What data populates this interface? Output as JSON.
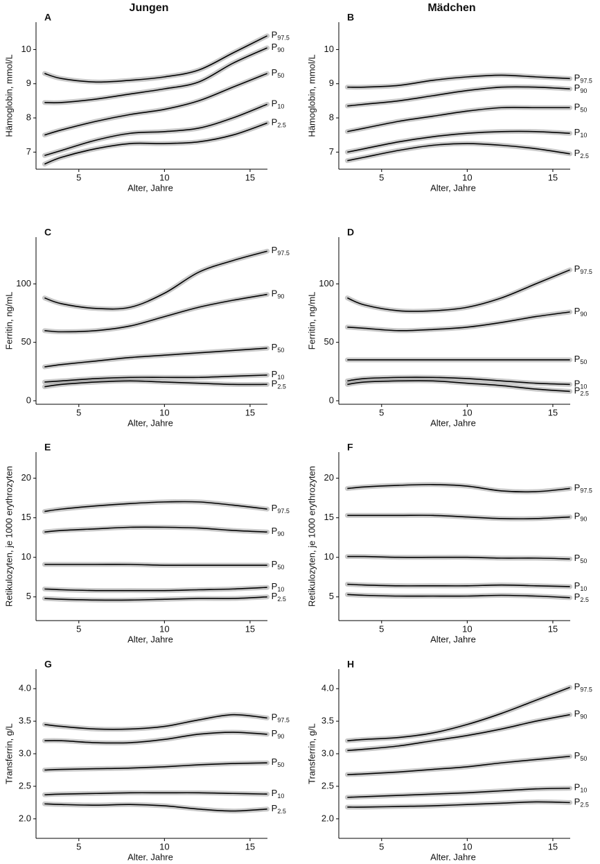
{
  "chart_data": [
    {
      "type": "line",
      "label": "A",
      "title": "Jungen",
      "xlabel": "Alter, Jahre",
      "ylabel": "Hämoglobin, mmol/L",
      "x": [
        3,
        4,
        6,
        8,
        10,
        12,
        14,
        16
      ],
      "xlim": [
        2.5,
        16.5
      ],
      "xticks": [
        5,
        10,
        15
      ],
      "ylim": [
        6.5,
        10.8
      ],
      "yticks": [
        7,
        8,
        9,
        10
      ],
      "series": [
        {
          "name": "P97.5",
          "color": "#000000",
          "values": [
            9.3,
            9.15,
            9.05,
            9.1,
            9.2,
            9.4,
            9.9,
            10.4
          ]
        },
        {
          "name": "P90",
          "color": "#000000",
          "values": [
            8.45,
            8.45,
            8.55,
            8.7,
            8.85,
            9.05,
            9.6,
            10.05
          ]
        },
        {
          "name": "P50",
          "color": "#000000",
          "values": [
            7.5,
            7.65,
            7.9,
            8.1,
            8.25,
            8.5,
            8.9,
            9.3
          ]
        },
        {
          "name": "P10",
          "color": "#000000",
          "values": [
            6.9,
            7.05,
            7.35,
            7.55,
            7.6,
            7.7,
            8.0,
            8.4
          ]
        },
        {
          "name": "P2.5",
          "color": "#000000",
          "values": [
            6.65,
            6.85,
            7.1,
            7.25,
            7.25,
            7.3,
            7.5,
            7.85
          ]
        }
      ]
    },
    {
      "type": "line",
      "label": "B",
      "title": "Mädchen",
      "xlabel": "Alter, Jahre",
      "ylabel": "Hämoglobin, mmol/L",
      "x": [
        3,
        4,
        6,
        8,
        10,
        12,
        14,
        16
      ],
      "xlim": [
        2.5,
        16.5
      ],
      "xticks": [
        5,
        10,
        15
      ],
      "ylim": [
        6.5,
        10.8
      ],
      "yticks": [
        7,
        8,
        9,
        10
      ],
      "series": [
        {
          "name": "P97.5",
          "color": "#000000",
          "values": [
            8.9,
            8.9,
            8.95,
            9.1,
            9.2,
            9.25,
            9.2,
            9.15
          ]
        },
        {
          "name": "P90",
          "color": "#000000",
          "values": [
            8.35,
            8.4,
            8.5,
            8.65,
            8.8,
            8.9,
            8.9,
            8.85
          ]
        },
        {
          "name": "P50",
          "color": "#000000",
          "values": [
            7.6,
            7.7,
            7.9,
            8.05,
            8.2,
            8.3,
            8.3,
            8.3
          ]
        },
        {
          "name": "P10",
          "color": "#000000",
          "values": [
            7.0,
            7.1,
            7.3,
            7.45,
            7.55,
            7.6,
            7.6,
            7.55
          ]
        },
        {
          "name": "P2.5",
          "color": "#000000",
          "values": [
            6.75,
            6.85,
            7.05,
            7.2,
            7.25,
            7.2,
            7.1,
            6.95
          ]
        }
      ]
    },
    {
      "type": "line",
      "label": "C",
      "xlabel": "Alter, Jahre",
      "ylabel": "Ferritin, ng/mL",
      "x": [
        3,
        4,
        6,
        8,
        10,
        12,
        14,
        16
      ],
      "xlim": [
        2.5,
        16.5
      ],
      "xticks": [
        5,
        10,
        15
      ],
      "ylim": [
        -3,
        140
      ],
      "yticks": [
        0,
        50,
        100
      ],
      "series": [
        {
          "name": "P97.5",
          "color": "#000000",
          "values": [
            88,
            83,
            79,
            80,
            92,
            110,
            120,
            128
          ]
        },
        {
          "name": "P90",
          "color": "#000000",
          "values": [
            60,
            59,
            60,
            64,
            72,
            80,
            86,
            91
          ]
        },
        {
          "name": "P50",
          "color": "#000000",
          "values": [
            29,
            31,
            34,
            37,
            39,
            41,
            43,
            45
          ]
        },
        {
          "name": "P10",
          "color": "#000000",
          "values": [
            16,
            17,
            19,
            20,
            20,
            20,
            21,
            22
          ]
        },
        {
          "name": "P2.5",
          "color": "#000000",
          "values": [
            12,
            14,
            16,
            17,
            16,
            15,
            14,
            14
          ]
        }
      ]
    },
    {
      "type": "line",
      "label": "D",
      "xlabel": "Alter, Jahre",
      "ylabel": "Ferritin, ng/mL",
      "x": [
        3,
        4,
        6,
        8,
        10,
        12,
        14,
        16
      ],
      "xlim": [
        2.5,
        16.5
      ],
      "xticks": [
        5,
        10,
        15
      ],
      "ylim": [
        -3,
        140
      ],
      "yticks": [
        0,
        50,
        100
      ],
      "series": [
        {
          "name": "P97.5",
          "color": "#000000",
          "values": [
            88,
            82,
            77,
            77,
            80,
            88,
            100,
            112
          ]
        },
        {
          "name": "P90",
          "color": "#000000",
          "values": [
            63,
            62,
            60,
            61,
            63,
            67,
            72,
            76
          ]
        },
        {
          "name": "P50",
          "color": "#000000",
          "values": [
            35,
            35,
            35,
            35,
            35,
            35,
            35,
            35
          ]
        },
        {
          "name": "P10",
          "color": "#000000",
          "values": [
            17,
            19,
            20,
            20,
            19,
            17,
            15,
            14
          ]
        },
        {
          "name": "P2.5",
          "color": "#000000",
          "values": [
            14,
            16,
            17,
            17,
            15,
            13,
            10,
            8
          ]
        }
      ]
    },
    {
      "type": "line",
      "label": "E",
      "xlabel": "Alter, Jahre",
      "ylabel": "Retikulozyten, je 1000 erythrozyten",
      "x": [
        3,
        4,
        6,
        8,
        10,
        12,
        14,
        16
      ],
      "xlim": [
        2.5,
        16.5
      ],
      "xticks": [
        5,
        10,
        15
      ],
      "ylim": [
        2,
        23.3
      ],
      "yticks": [
        5,
        10,
        15,
        20
      ],
      "series": [
        {
          "name": "P97.5",
          "color": "#000000",
          "values": [
            15.8,
            16.1,
            16.5,
            16.8,
            17.0,
            17.0,
            16.6,
            16.1
          ]
        },
        {
          "name": "P90",
          "color": "#000000",
          "values": [
            13.2,
            13.4,
            13.6,
            13.8,
            13.8,
            13.7,
            13.4,
            13.2
          ]
        },
        {
          "name": "P50",
          "color": "#000000",
          "values": [
            9.1,
            9.1,
            9.1,
            9.1,
            9.0,
            9.0,
            9.0,
            9.0
          ]
        },
        {
          "name": "P10",
          "color": "#000000",
          "values": [
            6.0,
            5.9,
            5.8,
            5.8,
            5.8,
            5.9,
            6.0,
            6.2
          ]
        },
        {
          "name": "P2.5",
          "color": "#000000",
          "values": [
            4.8,
            4.7,
            4.6,
            4.6,
            4.7,
            4.8,
            4.8,
            5.0
          ]
        }
      ]
    },
    {
      "type": "line",
      "label": "F",
      "xlabel": "Alter, Jahre",
      "ylabel": "Retikulozyten, je 1000 erythrozyten",
      "x": [
        3,
        4,
        6,
        8,
        10,
        12,
        14,
        16
      ],
      "xlim": [
        2.5,
        16.5
      ],
      "xticks": [
        5,
        10,
        15
      ],
      "ylim": [
        2,
        23.3
      ],
      "yticks": [
        5,
        10,
        15,
        20
      ],
      "series": [
        {
          "name": "P97.5",
          "color": "#000000",
          "values": [
            18.7,
            18.9,
            19.1,
            19.2,
            19.0,
            18.4,
            18.3,
            18.7
          ]
        },
        {
          "name": "P90",
          "color": "#000000",
          "values": [
            15.3,
            15.3,
            15.3,
            15.3,
            15.1,
            14.9,
            14.9,
            15.1
          ]
        },
        {
          "name": "P50",
          "color": "#000000",
          "values": [
            10.1,
            10.1,
            10.0,
            10.0,
            10.0,
            9.9,
            9.9,
            9.8
          ]
        },
        {
          "name": "P10",
          "color": "#000000",
          "values": [
            6.6,
            6.5,
            6.4,
            6.4,
            6.4,
            6.5,
            6.4,
            6.3
          ]
        },
        {
          "name": "P2.5",
          "color": "#000000",
          "values": [
            5.3,
            5.2,
            5.1,
            5.1,
            5.1,
            5.2,
            5.1,
            4.9
          ]
        }
      ]
    },
    {
      "type": "line",
      "label": "G",
      "xlabel": "Alter, Jahre",
      "ylabel": "Transferrin, g/L",
      "x": [
        3,
        4,
        6,
        8,
        10,
        12,
        14,
        16
      ],
      "xlim": [
        2.5,
        16.5
      ],
      "xticks": [
        5,
        10,
        15
      ],
      "ylim": [
        1.7,
        4.3
      ],
      "yticks": [
        {
          "value": 2,
          "label": "2.0"
        },
        2.5,
        {
          "value": 3,
          "label": "3.0"
        },
        3.5,
        {
          "value": 4,
          "label": "4.0"
        }
      ],
      "series": [
        {
          "name": "P97.5",
          "color": "#000000",
          "values": [
            3.45,
            3.42,
            3.38,
            3.38,
            3.42,
            3.52,
            3.6,
            3.55
          ]
        },
        {
          "name": "P90",
          "color": "#000000",
          "values": [
            3.2,
            3.2,
            3.17,
            3.17,
            3.22,
            3.3,
            3.33,
            3.3
          ]
        },
        {
          "name": "P50",
          "color": "#000000",
          "values": [
            2.75,
            2.76,
            2.77,
            2.78,
            2.8,
            2.83,
            2.85,
            2.86
          ]
        },
        {
          "name": "P10",
          "color": "#000000",
          "values": [
            2.37,
            2.38,
            2.39,
            2.4,
            2.4,
            2.4,
            2.39,
            2.38
          ]
        },
        {
          "name": "P2.5",
          "color": "#000000",
          "values": [
            2.23,
            2.22,
            2.21,
            2.22,
            2.2,
            2.15,
            2.12,
            2.15
          ]
        }
      ]
    },
    {
      "type": "line",
      "label": "H",
      "xlabel": "Alter, Jahre",
      "ylabel": "Transferrin, g/L",
      "x": [
        3,
        4,
        6,
        8,
        10,
        12,
        14,
        16
      ],
      "xlim": [
        2.5,
        16.5
      ],
      "xticks": [
        5,
        10,
        15
      ],
      "ylim": [
        1.7,
        4.3
      ],
      "yticks": [
        {
          "value": 2,
          "label": "2.0"
        },
        2.5,
        {
          "value": 3,
          "label": "3.0"
        },
        3.5,
        {
          "value": 4,
          "label": "4.0"
        }
      ],
      "series": [
        {
          "name": "P97.5",
          "color": "#000000",
          "values": [
            3.2,
            3.22,
            3.25,
            3.32,
            3.45,
            3.62,
            3.82,
            4.02
          ]
        },
        {
          "name": "P90",
          "color": "#000000",
          "values": [
            3.05,
            3.07,
            3.12,
            3.2,
            3.28,
            3.38,
            3.5,
            3.6
          ]
        },
        {
          "name": "P50",
          "color": "#000000",
          "values": [
            2.68,
            2.69,
            2.72,
            2.76,
            2.8,
            2.86,
            2.91,
            2.96
          ]
        },
        {
          "name": "P10",
          "color": "#000000",
          "values": [
            2.33,
            2.34,
            2.36,
            2.38,
            2.4,
            2.43,
            2.46,
            2.47
          ]
        },
        {
          "name": "P2.5",
          "color": "#000000",
          "values": [
            2.18,
            2.18,
            2.19,
            2.2,
            2.22,
            2.24,
            2.26,
            2.25
          ]
        }
      ]
    }
  ]
}
